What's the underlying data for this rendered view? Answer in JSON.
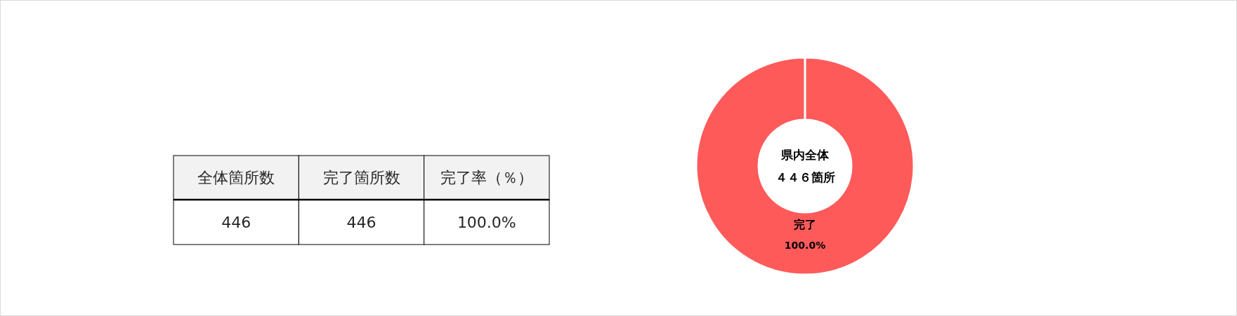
{
  "chart_data": [
    {
      "type": "other",
      "categories": [
        "全体箇所数",
        "完了箇所数",
        "完了率（％）"
      ],
      "annotations": [
        "446",
        "446",
        "100.0%"
      ]
    },
    {
      "type": "donut",
      "categories": [
        "完了"
      ],
      "values": [
        100
      ],
      "colors": [
        "#ff5a5a"
      ],
      "value_labels": [
        "100.0%"
      ],
      "annotations": [
        "県内全体",
        "４４６箇所"
      ]
    }
  ]
}
